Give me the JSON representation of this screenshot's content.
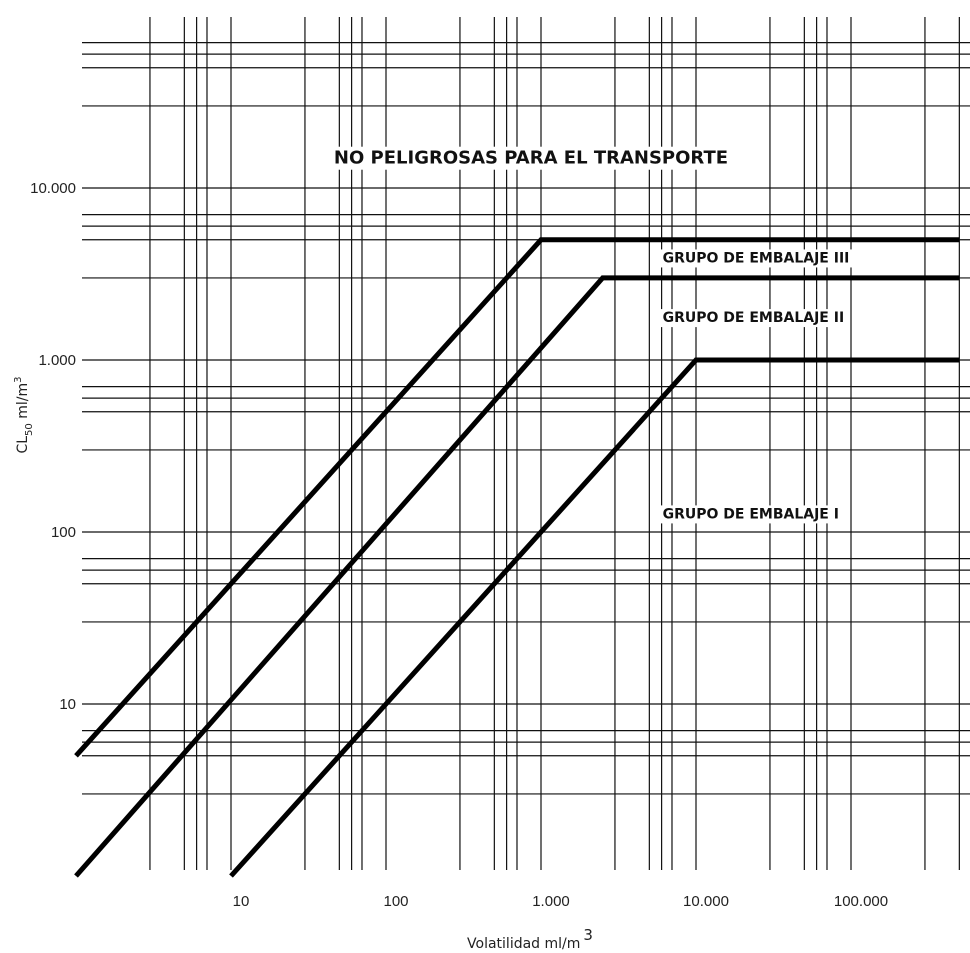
{
  "chart_data": {
    "type": "line",
    "title": "",
    "xlabel": {
      "main": "Volatilidad ml/m",
      "sup": "3"
    },
    "ylabel": {
      "main": "CL",
      "sub": "50",
      "tail": " ml/m",
      "sup": "3"
    },
    "x_scale": "log",
    "y_scale": "log",
    "xlim": [
      1,
      500000
    ],
    "ylim": [
      1,
      100000
    ],
    "grid": true,
    "x_ticks": [
      {
        "value": 10,
        "label": "10"
      },
      {
        "value": 100,
        "label": "100"
      },
      {
        "value": 1000,
        "label": "1.000"
      },
      {
        "value": 10000,
        "label": "10.000"
      },
      {
        "value": 100000,
        "label": "100.000"
      }
    ],
    "y_ticks": [
      {
        "value": 10,
        "label": "10"
      },
      {
        "value": 100,
        "label": "100"
      },
      {
        "value": 1000,
        "label": "1.000"
      },
      {
        "value": 10000,
        "label": "10.000"
      }
    ],
    "series": [
      {
        "x": [
          1,
          1000,
          500000
        ],
        "y": [
          5,
          5000,
          5000
        ]
      },
      {
        "x": [
          1,
          2500,
          500000
        ],
        "y": [
          1,
          3000,
          3000
        ]
      },
      {
        "x": [
          10,
          10000,
          500000
        ],
        "y": [
          1,
          1000,
          1000
        ]
      }
    ],
    "annotations": [
      {
        "text": "NO PELIGROSAS PARA EL TRANSPORTE",
        "x": 1000,
        "y": 15000,
        "style": "main"
      },
      {
        "text": "GRUPO DE EMBALAJE III",
        "x": 60000,
        "y": 4000,
        "style": "group"
      },
      {
        "text": "GRUPO DE EMBALAJE II",
        "x": 60000,
        "y": 1800,
        "style": "group"
      },
      {
        "text": "GRUPO DE EMBALAJE I",
        "x": 60000,
        "y": 130,
        "style": "group"
      }
    ]
  }
}
